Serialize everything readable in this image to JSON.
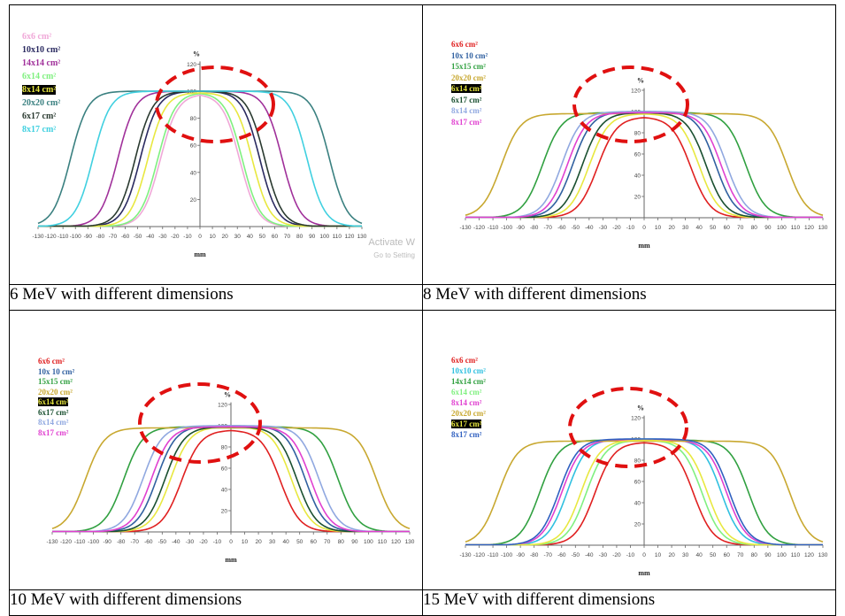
{
  "panels": [
    {
      "caption": "6 MeV with different dimensions",
      "watermark": [
        "Activate W",
        "Go to Setting"
      ],
      "chart_data": {
        "type": "line",
        "ylabel": "%",
        "xlabel": "mm",
        "xlim": [
          -130,
          130
        ],
        "ylim": [
          0,
          120
        ],
        "xticks": [
          "-130",
          "-120",
          "-110",
          "-100",
          "-90",
          "-80",
          "-70",
          "-60",
          "-50",
          "-40",
          "-30",
          "-20",
          "-10",
          "0",
          "10",
          "20",
          "30",
          "40",
          "50",
          "60",
          "70",
          "80",
          "90",
          "100",
          "110",
          "120",
          "130"
        ],
        "yticks": [
          "20",
          "40",
          "60",
          "80",
          "100",
          "120"
        ],
        "legend_position": "top-left",
        "series": [
          {
            "name": "6x6  cm²",
            "color": "#f0a8d8",
            "w": 32,
            "top": 98
          },
          {
            "name": "10x10 cm²",
            "color": "#2a2a60",
            "w": 48,
            "top": 100
          },
          {
            "name": "14x14 cm²",
            "color": "#a0309a",
            "w": 66,
            "top": 100
          },
          {
            "name": "6x14  cm²",
            "color": "#80f080",
            "w": 34,
            "top": 99
          },
          {
            "name": "8x14  cm²",
            "color": "#e8e840",
            "w": 42,
            "top": 99,
            "highlight": true
          },
          {
            "name": "20x20 cm²",
            "color": "#3a8080",
            "w": 104,
            "top": 100
          },
          {
            "name": "6x17  cm²",
            "color": "#2a3a30",
            "w": 52,
            "top": 100
          },
          {
            "name": "8x17  cm²",
            "color": "#40d0e0",
            "w": 86,
            "top": 100
          }
        ]
      }
    },
    {
      "caption": "8 MeV with different dimensions",
      "chart_data": {
        "type": "line",
        "ylabel": "%",
        "xlabel": "mm",
        "xlim": [
          -130,
          130
        ],
        "ylim": [
          0,
          120
        ],
        "xticks": [
          "-130",
          "-120",
          "-110",
          "-100",
          "-90",
          "-80",
          "-70",
          "-60",
          "-50",
          "-40",
          "-30",
          "-20",
          "-10",
          "0",
          "10",
          "20",
          "30",
          "40",
          "50",
          "60",
          "70",
          "80",
          "90",
          "100",
          "110",
          "120",
          "130"
        ],
        "yticks": [
          "20",
          "40",
          "60",
          "80",
          "100",
          "120"
        ],
        "legend_position": "top-left",
        "series": [
          {
            "name": "6x6  cm²",
            "color": "#e02020",
            "w": 34,
            "top": 95
          },
          {
            "name": "10x 10 cm²",
            "color": "#3060a0",
            "w": 52,
            "top": 100
          },
          {
            "name": "15x15 cm²",
            "color": "#30a040",
            "w": 74,
            "top": 99
          },
          {
            "name": "20x20 cm²",
            "color": "#c8a830",
            "w": 104,
            "top": 98
          },
          {
            "name": "6x14  cm²",
            "color": "#e8e840",
            "w": 40,
            "top": 98,
            "highlight": true
          },
          {
            "name": "6x17  cm²",
            "color": "#1a5030",
            "w": 45,
            "top": 99
          },
          {
            "name": "8x14  cm²",
            "color": "#90a8e0",
            "w": 60,
            "top": 100
          },
          {
            "name": "8x17  cm²",
            "color": "#e040d0",
            "w": 56,
            "top": 99
          }
        ]
      }
    },
    {
      "caption": "10 MeV with different dimensions",
      "chart_data": {
        "type": "line",
        "ylabel": "%",
        "xlabel": "mm",
        "xlim": [
          -130,
          130
        ],
        "ylim": [
          0,
          120
        ],
        "xticks": [
          "-130",
          "-120",
          "-110",
          "-100",
          "-90",
          "-80",
          "-70",
          "-60",
          "-50",
          "-40",
          "-30",
          "-20",
          "-10",
          "0",
          "10",
          "20",
          "30",
          "40",
          "50",
          "60",
          "70",
          "80",
          "90",
          "100",
          "110",
          "120",
          "130"
        ],
        "yticks": [
          "20",
          "40",
          "60",
          "80",
          "100",
          "120"
        ],
        "legend_position": "top-left",
        "series": [
          {
            "name": "6x6  cm²",
            "color": "#e02020",
            "w": 36,
            "top": 96
          },
          {
            "name": "10x 10 cm²",
            "color": "#3060a0",
            "w": 54,
            "top": 100
          },
          {
            "name": "15x15 cm²",
            "color": "#30a040",
            "w": 78,
            "top": 99
          },
          {
            "name": "20x20 cm²",
            "color": "#c8a830",
            "w": 106,
            "top": 98
          },
          {
            "name": "6x14  cm²",
            "color": "#e8e840",
            "w": 44,
            "top": 99,
            "highlight": true
          },
          {
            "name": "6x17  cm²",
            "color": "#1a5030",
            "w": 48,
            "top": 99
          },
          {
            "name": "8x14  cm²",
            "color": "#90a8e0",
            "w": 64,
            "top": 100
          },
          {
            "name": "8x17  cm²",
            "color": "#e040d0",
            "w": 58,
            "top": 99
          }
        ]
      }
    },
    {
      "caption": "15 MeV with different dimensions",
      "chart_data": {
        "type": "line",
        "ylabel": "%",
        "xlabel": "mm",
        "xlim": [
          -130,
          130
        ],
        "ylim": [
          0,
          120
        ],
        "xticks": [
          "-130",
          "-120",
          "-110",
          "-100",
          "-90",
          "-80",
          "-70",
          "-60",
          "-50",
          "-40",
          "-30",
          "-20",
          "-10",
          "0",
          "10",
          "20",
          "30",
          "40",
          "50",
          "60",
          "70",
          "80",
          "90",
          "100",
          "110",
          "120",
          "130"
        ],
        "yticks": [
          "20",
          "40",
          "60",
          "80",
          "100",
          "120"
        ],
        "legend_position": "top-left",
        "series": [
          {
            "name": "6x6   cm²",
            "color": "#e02020",
            "w": 36,
            "top": 97
          },
          {
            "name": "10x10 cm²",
            "color": "#30c0e0",
            "w": 56,
            "top": 100
          },
          {
            "name": "14x14 cm²",
            "color": "#30a040",
            "w": 76,
            "top": 99
          },
          {
            "name": "6x14  cm²",
            "color": "#80f080",
            "w": 42,
            "top": 99
          },
          {
            "name": "8x14  cm²",
            "color": "#e040d0",
            "w": 60,
            "top": 99
          },
          {
            "name": "20x20 cm²",
            "color": "#c8a830",
            "w": 106,
            "top": 98
          },
          {
            "name": "6x17  cm²",
            "color": "#e8e840",
            "w": 46,
            "top": 99,
            "highlight": true
          },
          {
            "name": "8x17  cm²",
            "color": "#3060c0",
            "w": 62,
            "top": 100
          }
        ]
      }
    }
  ]
}
